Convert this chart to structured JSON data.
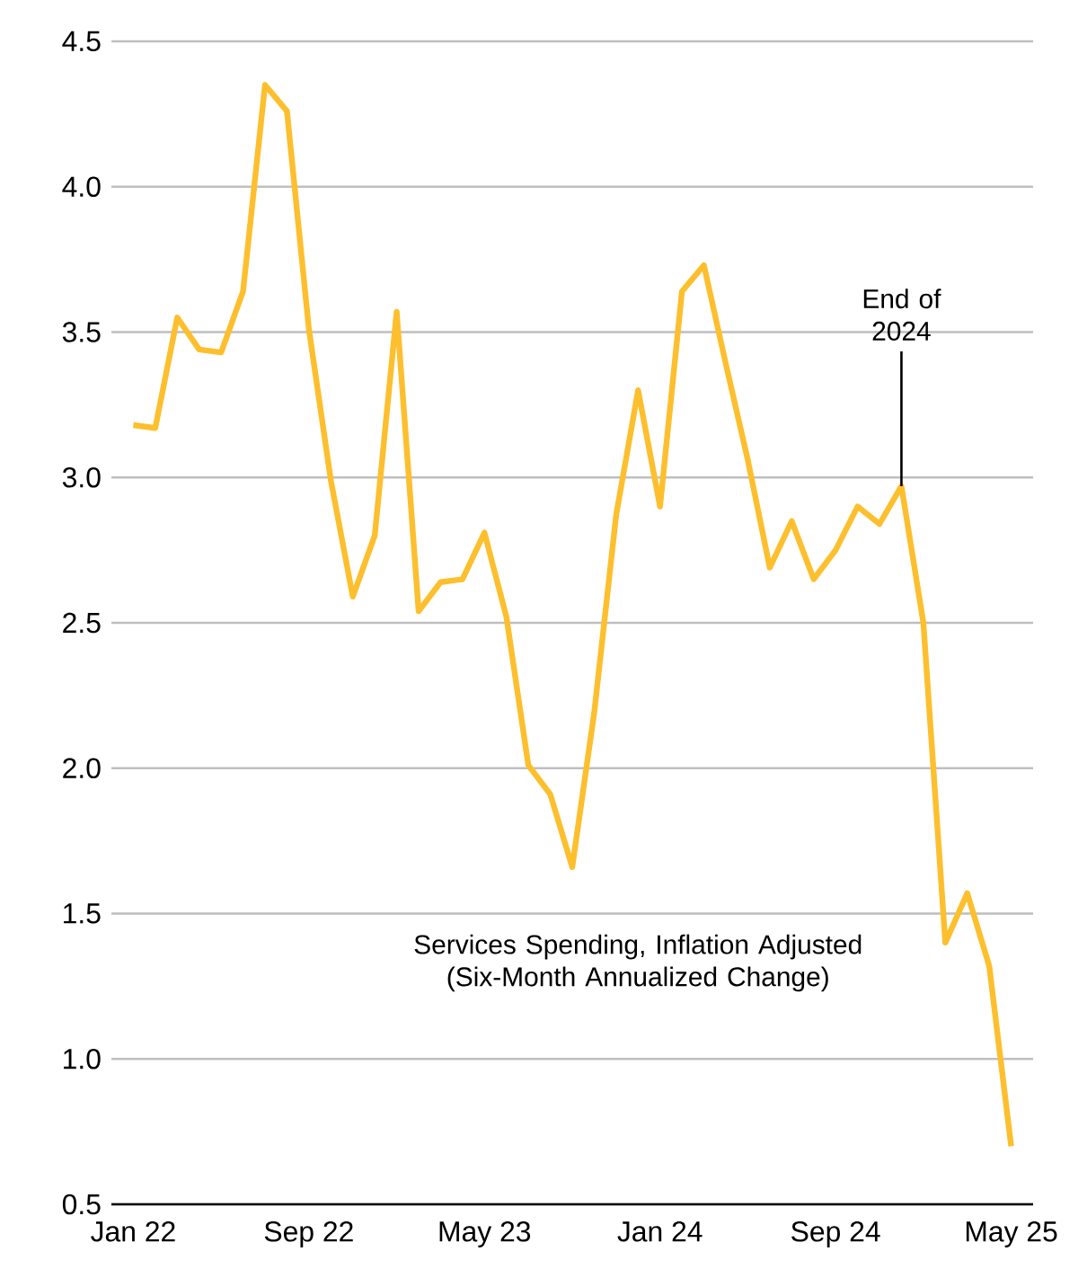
{
  "chart_data": {
    "type": "line",
    "x": [
      "2022-01",
      "2022-02",
      "2022-03",
      "2022-04",
      "2022-05",
      "2022-06",
      "2022-07",
      "2022-08",
      "2022-09",
      "2022-10",
      "2022-11",
      "2022-12",
      "2023-01",
      "2023-02",
      "2023-03",
      "2023-04",
      "2023-05",
      "2023-06",
      "2023-07",
      "2023-08",
      "2023-09",
      "2023-10",
      "2023-11",
      "2023-12",
      "2024-01",
      "2024-02",
      "2024-03",
      "2024-04",
      "2024-05",
      "2024-06",
      "2024-07",
      "2024-08",
      "2024-09",
      "2024-10",
      "2024-11",
      "2024-12",
      "2025-01",
      "2025-02",
      "2025-03",
      "2025-04",
      "2025-05"
    ],
    "series": [
      {
        "name": "Services Spending, Inflation Adjusted (Six-Month Annualized Change)",
        "color": "#fdbf2d",
        "values": [
          3.18,
          3.17,
          3.55,
          3.44,
          3.43,
          3.64,
          4.35,
          4.26,
          3.51,
          2.99,
          2.59,
          2.8,
          3.57,
          2.54,
          2.64,
          2.65,
          2.81,
          2.52,
          2.01,
          1.91,
          1.66,
          2.19,
          2.87,
          3.3,
          2.9,
          3.64,
          3.73,
          3.39,
          3.06,
          2.69,
          2.85,
          2.65,
          2.75,
          2.9,
          2.84,
          2.97,
          2.5,
          1.4,
          1.57,
          1.32,
          0.7
        ]
      }
    ],
    "xlim": [
      "2021-12",
      "2025-06"
    ],
    "xticks": [
      {
        "value": "2022-01",
        "label": "Jan 22"
      },
      {
        "value": "2022-09",
        "label": "Sep 22"
      },
      {
        "value": "2023-05",
        "label": "May 23"
      },
      {
        "value": "2024-01",
        "label": "Jan 24"
      },
      {
        "value": "2024-09",
        "label": "Sep 24"
      },
      {
        "value": "2025-05",
        "label": "May 25"
      }
    ],
    "ylim": [
      0.5,
      4.5
    ],
    "yticks": [
      {
        "value": 0.5,
        "label": "0.5"
      },
      {
        "value": 1.0,
        "label": "1.0"
      },
      {
        "value": 1.5,
        "label": "1.5"
      },
      {
        "value": 2.0,
        "label": "2.0"
      },
      {
        "value": 2.5,
        "label": "2.5"
      },
      {
        "value": 3.0,
        "label": "3.0"
      },
      {
        "value": 3.5,
        "label": "3.5"
      },
      {
        "value": 4.0,
        "label": "4.0"
      },
      {
        "value": 4.5,
        "label": "4.5"
      }
    ],
    "grid": "y",
    "annotations": [
      {
        "text": "End of 2024",
        "x": "2024-12",
        "y": 2.97
      }
    ]
  }
}
